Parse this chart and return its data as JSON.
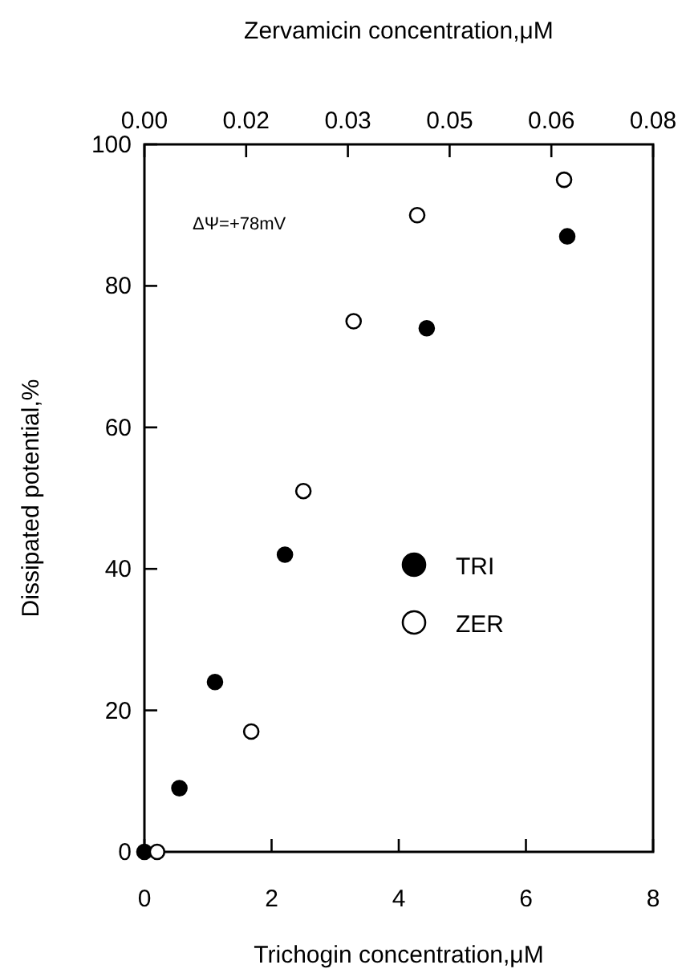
{
  "chart_data": {
    "type": "scatter",
    "xlabel": "Trichogin concentration,μM",
    "x2label": "Zervamicin concentration,μM",
    "ylabel": "Dissipated potential,%",
    "xlim": [
      0,
      8
    ],
    "xticks": [
      0,
      2,
      4,
      6,
      8
    ],
    "x2lim": [
      0,
      0.08
    ],
    "x2ticks": [
      {
        "value": 0,
        "label": "0.00"
      },
      {
        "value": 0.016,
        "label": "0.02"
      },
      {
        "value": 0.032,
        "label": "0.03"
      },
      {
        "value": 0.048,
        "label": "0.05"
      },
      {
        "value": 0.064,
        "label": "0.06"
      },
      {
        "value": 0.08,
        "label": "0.08"
      }
    ],
    "ylim": [
      0,
      100
    ],
    "yticks": [
      0,
      20,
      40,
      60,
      80,
      100
    ],
    "annotations": [
      "ΔΨ=+78mV"
    ],
    "legend": "right",
    "marker": "circle",
    "grid": false,
    "series": [
      {
        "name": "TRI",
        "color": "#000000",
        "x": [
          0,
          0.55,
          1.11,
          2.21,
          4.44,
          6.65
        ],
        "values": [
          0,
          9,
          24,
          42,
          74,
          87
        ]
      },
      {
        "name": "ZER",
        "color": "#ffffff",
        "axis": "x2",
        "x": [
          0.002,
          0.0168,
          0.025,
          0.0329,
          0.0429,
          0.066
        ],
        "values": [
          0,
          17,
          51,
          75,
          90,
          95
        ]
      }
    ]
  }
}
